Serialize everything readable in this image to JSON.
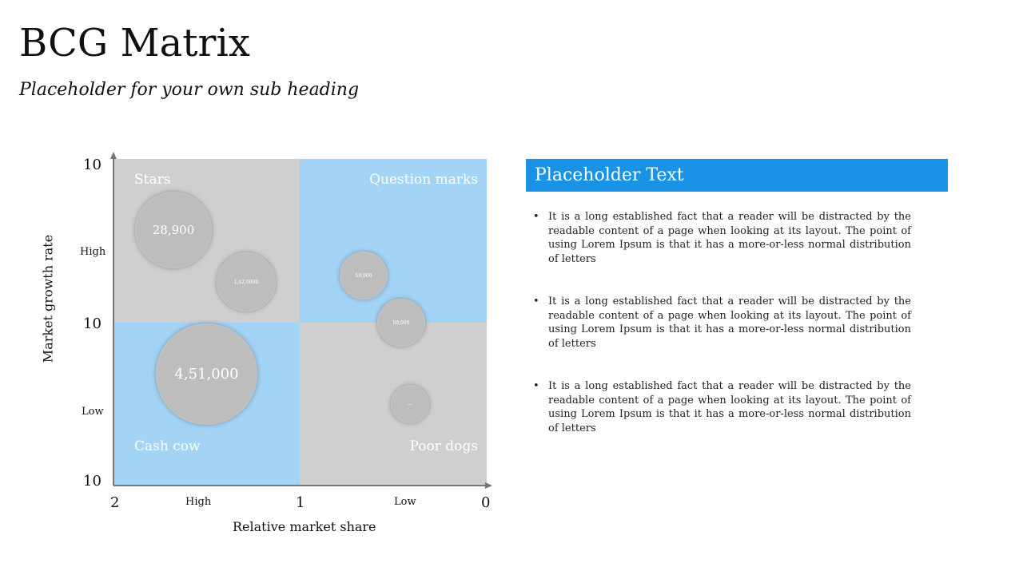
{
  "header": {
    "title": "BCG Matrix",
    "subtitle": "Placeholder for your own sub heading"
  },
  "colors": {
    "quadrant_gray": "#d0cfd0",
    "quadrant_blue": "#a3d3f5",
    "bubble": "#bdbdbd",
    "panel_header": "#1a93e6"
  },
  "matrix": {
    "quadrants": {
      "stars": "Stars",
      "question_marks": "Question marks",
      "cash_cow": "Cash cow",
      "poor_dogs": "Poor dogs"
    },
    "y_axis": {
      "label": "Market growth rate",
      "ticks": [
        "10",
        "10",
        "10"
      ],
      "high": "High",
      "low": "Low"
    },
    "x_axis": {
      "label": "Relative market share",
      "ticks": [
        "2",
        "1",
        "0"
      ],
      "high": "High",
      "low": "Low"
    },
    "bubbles": [
      {
        "label": "28,900"
      },
      {
        "label": "1,42,0000"
      },
      {
        "label": "4,51,000"
      },
      {
        "label": "58,000"
      },
      {
        "label": "98,000"
      },
      {
        "label": "—"
      }
    ]
  },
  "panel": {
    "title": "Placeholder Text",
    "bullets": [
      "It is a long established fact that a reader will be distracted by the readable content of a page when looking at its layout. The point of using Lorem Ipsum is that it has a more-or-less normal distribution of letters",
      "It is a long established fact that a reader will be distracted by the readable content of a page when looking at its layout. The point of using Lorem Ipsum is that it has a more-or-less normal distribution of letters",
      "It is a long established fact that a reader will be distracted by the readable content of a page when looking at its layout. The point of using Lorem Ipsum is that it has a more-or-less normal distribution of letters"
    ]
  }
}
